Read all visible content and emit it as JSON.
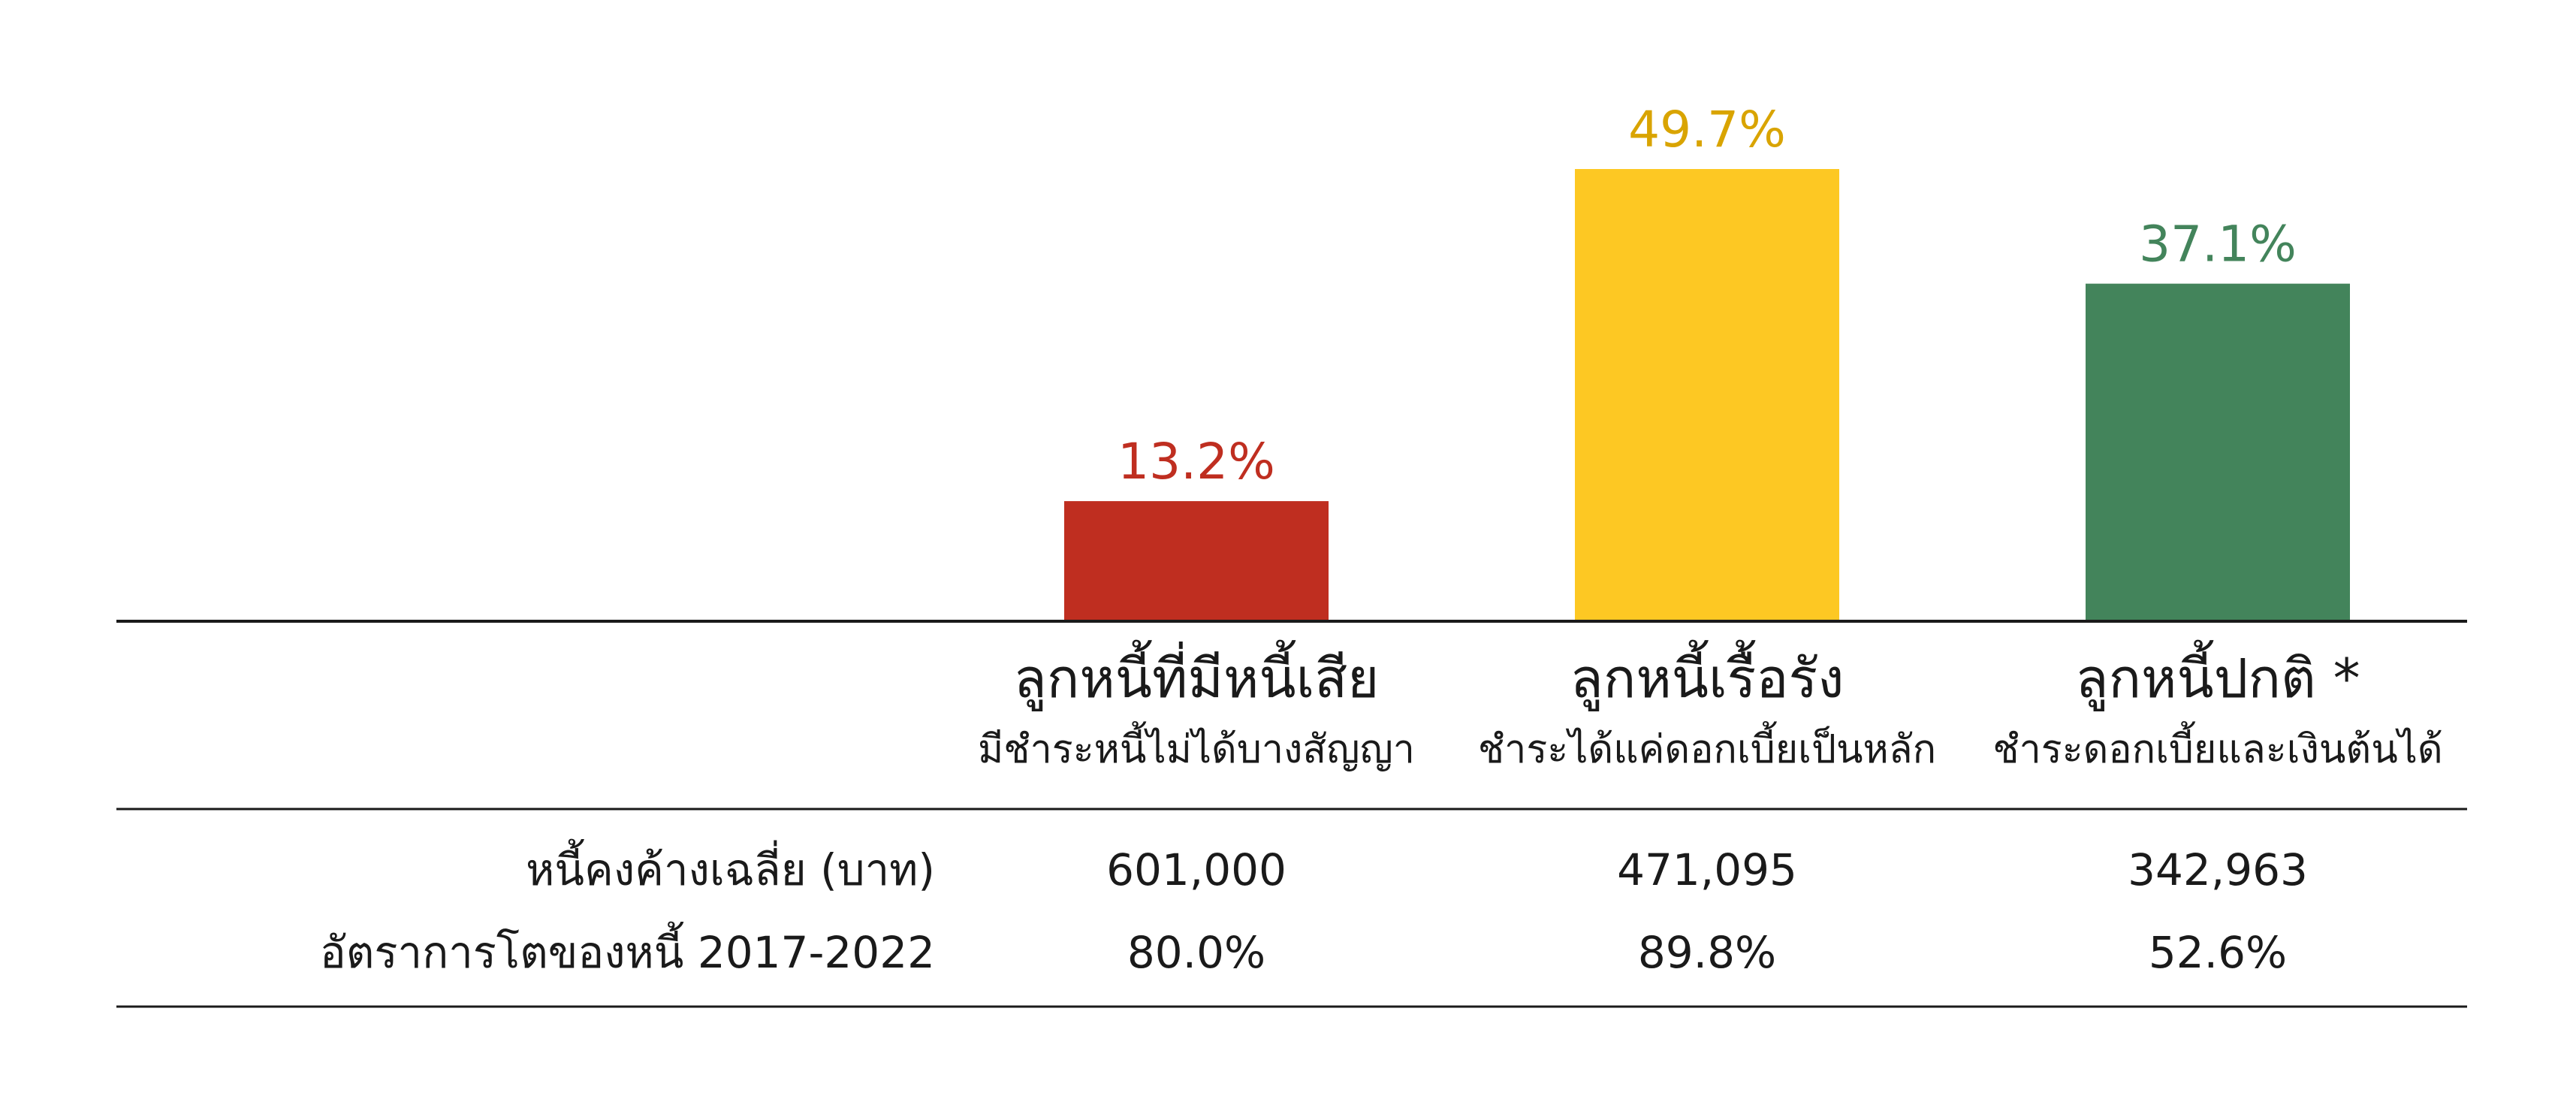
{
  "chart_data": {
    "type": "bar",
    "categories": [
      {
        "name": "ลูกหนี้ที่มีหนี้เสีย",
        "subtitle": "มีชำระหนี้ไม่ได้บางสัญญา"
      },
      {
        "name": "ลูกหนี้เรื้อรัง",
        "subtitle": "ชำระได้แค่ดอกเบี้ยเป็นหลัก"
      },
      {
        "name": "ลูกหนี้ปกติ *",
        "subtitle": "ชำระดอกเบี้ยและเงินต้นได้"
      }
    ],
    "values": [
      13.2,
      49.7,
      37.1
    ],
    "value_labels": [
      "13.2%",
      "49.7%",
      "37.1%"
    ],
    "colors": [
      "#bf2e20",
      "#fdc823",
      "#43845b"
    ],
    "ylim": [
      0,
      49.7
    ],
    "grid": false,
    "legend": "none",
    "table_rows": [
      {
        "label": "หนี้คงค้างเฉลี่ย (บาท)",
        "values": [
          "601,000",
          "471,095",
          "342,963"
        ]
      },
      {
        "label": "อัตราการโตของหนี้ 2017-2022",
        "values": [
          "80.0%",
          "89.8%",
          "52.6%"
        ]
      }
    ]
  }
}
